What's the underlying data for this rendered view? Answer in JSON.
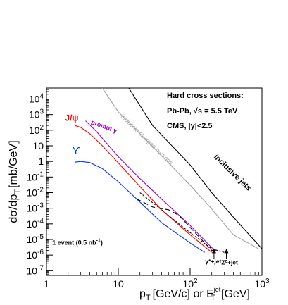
{
  "chart_data": {
    "type": "line",
    "xscale": "log",
    "yscale": "log",
    "xlim": [
      1,
      1000
    ],
    "ylim": [
      5e-08,
      50000.0
    ],
    "grid": false,
    "ylabel": "dσ/dp",
    "ylabel_sub": "T",
    "ylabel_unit": "[mb/GeV]",
    "xlabel": {
      "p": "p",
      "p_sub": "T",
      "mid": "[GeV/c] or E",
      "e_sup": "jet",
      "e_sub": "T",
      "tail": "[GeV]"
    },
    "x_ticks": [
      {
        "value": 1,
        "label": "1"
      },
      {
        "value": 10,
        "label": "10"
      },
      {
        "value": 100,
        "label": "10",
        "sup": "2"
      },
      {
        "value": 1000,
        "label": "10",
        "sup": "3"
      }
    ],
    "y_ticks": [
      {
        "value": 10000.0,
        "base": "10",
        "sup": "4"
      },
      {
        "value": 1000.0,
        "base": "10",
        "sup": "3"
      },
      {
        "value": 100.0,
        "base": "10",
        "sup": "2"
      },
      {
        "value": 10.0,
        "base": "10",
        "sup": ""
      },
      {
        "value": 1.0,
        "base": "1",
        "sup": ""
      },
      {
        "value": 0.1,
        "base": "10",
        "sup": "-1"
      },
      {
        "value": 0.01,
        "base": "10",
        "sup": "-2"
      },
      {
        "value": 0.001,
        "base": "10",
        "sup": "-3"
      },
      {
        "value": 0.0001,
        "base": "10",
        "sup": "-4"
      },
      {
        "value": 1e-05,
        "base": "10",
        "sup": "-5"
      },
      {
        "value": 1e-06,
        "base": "10",
        "sup": "-6"
      },
      {
        "value": 1e-07,
        "base": "10",
        "sup": "-7"
      }
    ],
    "info_box": {
      "title": "Hard cross sections:",
      "system_pre": "Pb-Pb, ",
      "sqrt": "√s",
      "system_post": " = 5.5 TeV",
      "acceptance": "CMS, |y|<2.5"
    },
    "reference_line": {
      "y": 2.5e-06,
      "label": "1 event (0.5 nb",
      "label_sup": "-1",
      "label_tail": ")"
    },
    "series": [
      {
        "name": "inclusive jets",
        "color": "#000000",
        "dash": "",
        "points": [
          [
            14,
            100000.0
          ],
          [
            30,
            200
          ],
          [
            100,
            0.6
          ],
          [
            200,
            0.01
          ],
          [
            400,
            0.00027
          ],
          [
            1000,
            2.5e-06
          ]
        ]
      },
      {
        "name": "inclusive charged hadrons",
        "color": "#a0a0a0",
        "dash": "",
        "points": [
          [
            6,
            100000.0
          ],
          [
            10,
            1500
          ],
          [
            20,
            60
          ],
          [
            50,
            0.8
          ],
          [
            100,
            0.03
          ],
          [
            200,
            0.0009
          ],
          [
            400,
            2e-05
          ],
          [
            900,
            2.5e-06
          ]
        ]
      },
      {
        "name": "J/ψ",
        "color": "#ff0000",
        "dash": "",
        "points": [
          [
            2.5,
            200
          ],
          [
            3,
            150
          ],
          [
            4,
            60
          ],
          [
            6,
            10
          ],
          [
            10,
            0.8
          ],
          [
            20,
            0.025
          ],
          [
            40,
            0.0008
          ],
          [
            100,
            2e-05
          ],
          [
            200,
            1.5e-06
          ]
        ]
      },
      {
        "name": "prompt γ",
        "color": "#9900cc",
        "dash": "",
        "points": [
          [
            3.5,
            400
          ],
          [
            5,
            80
          ],
          [
            10,
            2
          ],
          [
            20,
            0.08
          ],
          [
            50,
            0.0015
          ],
          [
            100,
            8e-05
          ],
          [
            200,
            3e-06
          ],
          [
            230,
            2e-06
          ]
        ]
      },
      {
        "name": "ϒ",
        "color": "#0033ff",
        "dash": "",
        "points": [
          [
            2.5,
            0.9
          ],
          [
            3,
            1
          ],
          [
            4,
            0.85
          ],
          [
            6,
            0.35
          ],
          [
            10,
            0.05
          ],
          [
            20,
            0.0025
          ],
          [
            40,
            0.00012
          ],
          [
            100,
            6e-06
          ],
          [
            160,
            1.5e-06
          ]
        ]
      },
      {
        "name": "",
        "color": "#000000",
        "dash": "7,4",
        "points": [
          [
            18,
            0.004
          ],
          [
            22,
            0.0025
          ],
          [
            30,
            0.0012
          ],
          [
            50,
            0.0008
          ],
          [
            70,
            0.00035
          ],
          [
            100,
            6e-05
          ],
          [
            200,
            2e-06
          ],
          [
            230,
            2e-06
          ]
        ]
      },
      {
        "name": "",
        "color": "#000000",
        "dash": "3,2",
        "points": [
          [
            20,
            0.01
          ],
          [
            40,
            0.0008
          ],
          [
            80,
            6e-05
          ],
          [
            200,
            2.5e-06
          ],
          [
            300,
            1.5e-06
          ]
        ]
      }
    ],
    "annotations": [
      {
        "text": "inclusive jets",
        "x": 370,
        "y": 0.15,
        "angle": 44,
        "color": "#000000",
        "weight": "bold",
        "size": 11
      },
      {
        "text": "inclusive charged hadrons",
        "x": 24,
        "y": 20,
        "angle": 44,
        "color": "#a0a0a0",
        "weight": "normal",
        "size": 8.5
      },
      {
        "text": "J/ψ",
        "x": 2.25,
        "y": 400,
        "angle": 0,
        "color": "#ff0000",
        "weight": "bold",
        "size": 12
      },
      {
        "text": "prompt γ",
        "x": 6.2,
        "y": 130,
        "angle": 20,
        "color": "#9900cc",
        "weight": "bold",
        "size": 9
      },
      {
        "text": "ϒ",
        "x": 2.6,
        "y": 3,
        "angle": 0,
        "color": "#0033ff",
        "weight": "normal",
        "size": 14
      },
      {
        "text": "γ*+jet",
        "x": 210,
        "y": 3e-07,
        "angle": 0,
        "color": "#000000",
        "weight": "bold",
        "size": 8.5
      },
      {
        "text": "Z⁰+jet",
        "x": 355,
        "y": 2.5e-07,
        "angle": 0,
        "color": "#000000",
        "weight": "bold",
        "size": 8.5
      }
    ],
    "arrows": [
      {
        "from": [
          215,
          6e-07
        ],
        "to": [
          215,
          2.5e-06
        ]
      },
      {
        "from": [
          320,
          6e-07
        ],
        "to": [
          320,
          2.5e-06
        ]
      }
    ]
  }
}
